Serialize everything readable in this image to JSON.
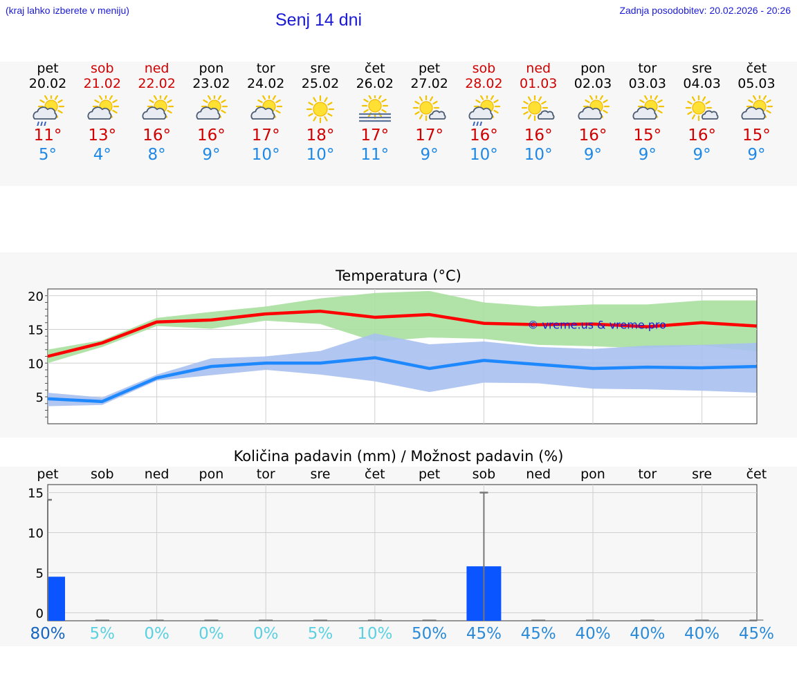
{
  "header": {
    "hint": "(kraj lahko izberete v meniju)",
    "title": "Senj 14 dni",
    "updated": "Zadnja posodobitev: 20.02.2026 - 20:26"
  },
  "days": [
    {
      "name": "pet",
      "date": "20.02",
      "hi": "11°",
      "lo": "5°",
      "icon": "sun-cloud-rain-icon",
      "weekend": false
    },
    {
      "name": "sob",
      "date": "21.02",
      "hi": "13°",
      "lo": "4°",
      "icon": "sun-cloud-icon",
      "weekend": true
    },
    {
      "name": "ned",
      "date": "22.02",
      "hi": "16°",
      "lo": "8°",
      "icon": "sun-cloud-icon",
      "weekend": true
    },
    {
      "name": "pon",
      "date": "23.02",
      "hi": "16°",
      "lo": "9°",
      "icon": "sun-cloud-icon",
      "weekend": false
    },
    {
      "name": "tor",
      "date": "24.02",
      "hi": "17°",
      "lo": "10°",
      "icon": "sun-cloud-icon",
      "weekend": false
    },
    {
      "name": "sre",
      "date": "25.02",
      "hi": "18°",
      "lo": "10°",
      "icon": "sun-icon",
      "weekend": false
    },
    {
      "name": "čet",
      "date": "26.02",
      "hi": "17°",
      "lo": "11°",
      "icon": "sun-fog-icon",
      "weekend": false
    },
    {
      "name": "pet",
      "date": "27.02",
      "hi": "17°",
      "lo": "9°",
      "icon": "sun-small-cloud-icon",
      "weekend": false
    },
    {
      "name": "sob",
      "date": "28.02",
      "hi": "16°",
      "lo": "10°",
      "icon": "sun-cloud-rain-icon",
      "weekend": true
    },
    {
      "name": "ned",
      "date": "01.03",
      "hi": "16°",
      "lo": "10°",
      "icon": "sun-small-cloud-icon",
      "weekend": true
    },
    {
      "name": "pon",
      "date": "02.03",
      "hi": "16°",
      "lo": "9°",
      "icon": "sun-cloud-icon",
      "weekend": false
    },
    {
      "name": "tor",
      "date": "03.03",
      "hi": "15°",
      "lo": "9°",
      "icon": "sun-cloud-icon",
      "weekend": false
    },
    {
      "name": "sre",
      "date": "04.03",
      "hi": "16°",
      "lo": "9°",
      "icon": "sun-small-cloud-icon",
      "weekend": false
    },
    {
      "name": "čet",
      "date": "05.03",
      "hi": "15°",
      "lo": "9°",
      "icon": "sun-cloud-icon",
      "weekend": false
    }
  ],
  "colors": {
    "max": "#ff0000",
    "max_band": "#a8e0a0",
    "min": "#1e88ff",
    "min_band": "#a8c0f0",
    "bar": "#0a55ff",
    "err": "#777777"
  },
  "chart_data": [
    {
      "type": "line",
      "title": "Temperatura (°C)",
      "watermark": "© vreme.us & vreme.pro",
      "ylim": [
        1,
        21
      ],
      "yticks": [
        5,
        10,
        15,
        20
      ],
      "x": [
        0,
        1,
        2,
        3,
        4,
        5,
        6,
        7,
        8,
        9,
        10,
        11,
        12,
        13
      ],
      "series": [
        {
          "name": "max",
          "values": [
            11.0,
            13.0,
            16.1,
            16.4,
            17.3,
            17.7,
            16.8,
            17.2,
            15.9,
            15.7,
            15.8,
            15.4,
            16.0,
            15.5
          ]
        },
        {
          "name": "max_upper",
          "values": [
            12.0,
            13.4,
            16.7,
            17.6,
            18.4,
            19.6,
            20.4,
            20.7,
            19.0,
            18.4,
            18.7,
            18.7,
            19.3,
            19.3
          ]
        },
        {
          "name": "max_lower",
          "values": [
            10.0,
            12.4,
            15.5,
            15.1,
            16.3,
            15.8,
            13.2,
            13.8,
            13.6,
            12.7,
            12.5,
            12.2,
            12.6,
            11.7
          ]
        },
        {
          "name": "min",
          "values": [
            4.7,
            4.3,
            7.8,
            9.5,
            10.0,
            10.0,
            10.8,
            9.2,
            10.4,
            9.8,
            9.2,
            9.4,
            9.3,
            9.5
          ]
        },
        {
          "name": "min_upper",
          "values": [
            5.6,
            4.9,
            8.3,
            10.7,
            11.0,
            11.8,
            14.4,
            12.8,
            13.2,
            12.4,
            12.1,
            12.6,
            12.7,
            13.0
          ]
        },
        {
          "name": "min_lower",
          "values": [
            3.6,
            3.8,
            7.4,
            8.2,
            9.0,
            8.3,
            7.3,
            5.7,
            7.1,
            7.0,
            6.2,
            6.1,
            5.9,
            5.6
          ]
        }
      ]
    },
    {
      "type": "bar",
      "title": "Količina padavin (mm) / Možnost padavin (%)",
      "ylim": [
        -1,
        16
      ],
      "yticks": [
        0,
        5,
        10,
        15
      ],
      "categories": [
        "pet",
        "sob",
        "ned",
        "pon",
        "tor",
        "sre",
        "čet",
        "pet",
        "sob",
        "ned",
        "pon",
        "tor",
        "sre",
        "čet"
      ],
      "values": [
        4.5,
        0,
        0,
        0,
        0,
        0,
        0,
        0,
        5.8,
        0,
        0,
        0,
        0,
        0
      ],
      "error_max": [
        14.1,
        0,
        0,
        0,
        0,
        0,
        0,
        0,
        15.0,
        0,
        0,
        0,
        0,
        0
      ],
      "probability": [
        "80%",
        "5%",
        "0%",
        "0%",
        "0%",
        "5%",
        "10%",
        "50%",
        "45%",
        "45%",
        "40%",
        "40%",
        "40%",
        "45%"
      ],
      "probability_colors": [
        "#1565c0",
        "#5ad0e0",
        "#5ad0e0",
        "#5ad0e0",
        "#5ad0e0",
        "#5ad0e0",
        "#5ad0e0",
        "#2a8ad8",
        "#2a8ad8",
        "#2a8ad8",
        "#2a8ad8",
        "#2a8ad8",
        "#2a8ad8",
        "#2a8ad8"
      ]
    }
  ]
}
